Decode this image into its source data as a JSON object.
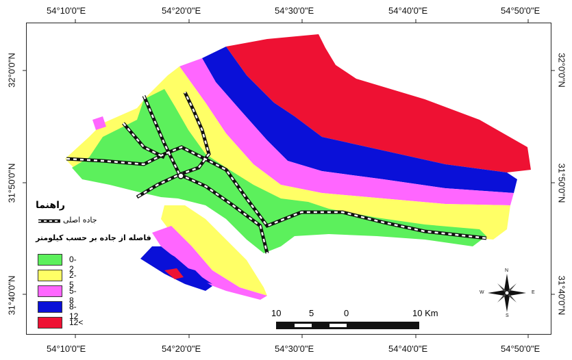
{
  "coordinates": {
    "top": [
      "54°10'0\"E",
      "54°20'0\"E",
      "54°30'0\"E",
      "54°40'0\"E",
      "54°50'0\"E"
    ],
    "bottom": [
      "54°10'0\"E",
      "54°20'0\"E",
      "54°30'0\"E",
      "54°40'0\"E",
      "54°50'0\"E"
    ],
    "left": [
      "32°0'0\"N",
      "31°50'0\"N",
      "31°40'0\"N"
    ],
    "right": [
      "32°0'0\"N",
      "31°50'0\"N",
      "31°40'0\"N"
    ]
  },
  "legend": {
    "title": "راهنما",
    "road_label": "جاده اصلی",
    "distance_title": "فاصله از جاده بر حسب کیلومتر",
    "classes": [
      {
        "label": "0-2",
        "color": "#5cf05c"
      },
      {
        "label": "2-5",
        "color": "#ffff66"
      },
      {
        "label": "5-8",
        "color": "#ff66ff"
      },
      {
        "label": "8-12",
        "color": "#0a10d8"
      },
      {
        "label": "12<",
        "color": "#ee1133"
      }
    ]
  },
  "scale_bar": {
    "labels": [
      "10",
      "5",
      "0",
      "10 Km"
    ]
  },
  "north_arrow": {
    "n": "N",
    "s": "S",
    "e": "E",
    "w": "W"
  }
}
